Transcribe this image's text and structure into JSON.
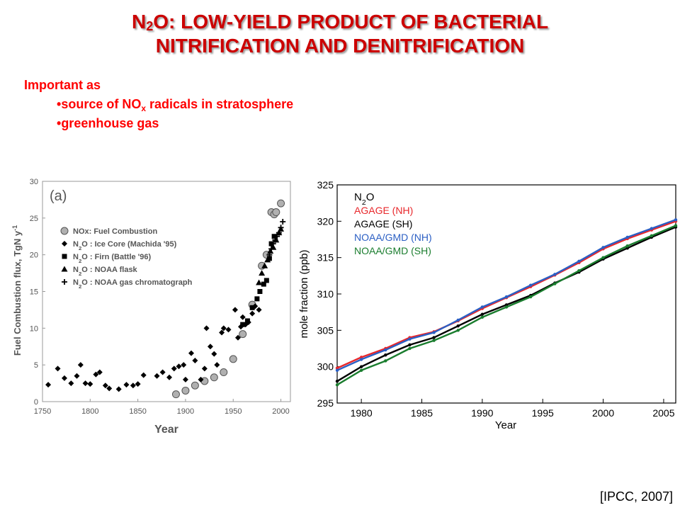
{
  "title": {
    "line1_prefix": "N",
    "line1_sub": "2",
    "line1_rest": "O: LOW-YIELD PRODUCT OF BACTERIAL",
    "line2": "NITRIFICATION AND DENITRIFICATION"
  },
  "intro": {
    "heading": "Important as",
    "bullet1_prefix": "source of NO",
    "bullet1_sub": "x",
    "bullet1_rest": " radicals in stratosphere",
    "bullet2": "greenhouse gas"
  },
  "credit": "[IPCC, 2007]",
  "chart_data": [
    {
      "type": "scatter",
      "panel_label": "(a)",
      "xlabel": "Year",
      "ylabel": "Fuel Combustion flux, TgN y-1",
      "xlim": [
        1750,
        2010
      ],
      "ylim": [
        0,
        30
      ],
      "xticks": [
        1750,
        1800,
        1850,
        1900,
        1950,
        2000
      ],
      "yticks": [
        0,
        5,
        10,
        15,
        20,
        25,
        30
      ],
      "legend_position": "upper-left",
      "series": [
        {
          "name": "NOx: Fuel Combustion",
          "marker": "circle",
          "color": "#b0b0b0",
          "x": [
            1890,
            1900,
            1910,
            1920,
            1930,
            1940,
            1950,
            1960,
            1970,
            1980,
            1985,
            1990,
            1993,
            1995,
            2000
          ],
          "y": [
            1.0,
            1.5,
            2.2,
            2.8,
            3.3,
            4.0,
            5.8,
            9.2,
            13.2,
            18.5,
            20.0,
            25.8,
            25.5,
            25.8,
            27.0
          ]
        },
        {
          "name": "N2O : Ice Core (Machida '95)",
          "marker": "diamond",
          "color": "#000000",
          "x": [
            1756,
            1766,
            1773,
            1780,
            1786,
            1790,
            1795,
            1800,
            1806,
            1810,
            1816,
            1820,
            1830,
            1838,
            1845,
            1850,
            1856,
            1870,
            1876,
            1883,
            1888,
            1893,
            1898,
            1900,
            1906,
            1910,
            1916,
            1920,
            1922,
            1926,
            1930,
            1933,
            1938,
            1940,
            1945,
            1952,
            1955,
            1958,
            1960,
            1963,
            1966,
            1970,
            1973,
            1977
          ],
          "y": [
            2.3,
            4.5,
            3.2,
            2.5,
            3.5,
            5.0,
            2.5,
            2.4,
            3.7,
            4.0,
            2.2,
            1.8,
            1.7,
            2.3,
            2.2,
            2.4,
            3.6,
            3.5,
            4.0,
            3.3,
            4.5,
            4.8,
            5.0,
            3.0,
            6.6,
            5.6,
            3.0,
            4.5,
            10.0,
            7.5,
            6.5,
            5.0,
            9.4,
            10.0,
            9.8,
            12.5,
            8.7,
            10.2,
            11.5,
            10.5,
            10.8,
            12.0,
            13.0,
            12.5
          ]
        },
        {
          "name": "N2O : Firn (Battle '96)",
          "marker": "square",
          "color": "#000000",
          "x": [
            1960,
            1965,
            1970,
            1975,
            1978,
            1982,
            1985,
            1988,
            1990,
            1993
          ],
          "y": [
            10.5,
            11.0,
            12.8,
            14.0,
            15.0,
            16.0,
            16.5,
            19.5,
            21.5,
            22.5
          ]
        },
        {
          "name": "N2O : NOAA flask",
          "marker": "triangle",
          "color": "#000000",
          "x": [
            1977,
            1980,
            1983,
            1986,
            1989,
            1992,
            1995,
            1998,
            2000
          ],
          "y": [
            16.2,
            17.5,
            18.5,
            19.3,
            20.5,
            21.0,
            22.0,
            23.0,
            23.5
          ]
        },
        {
          "name": "N2O : NOAA gas chromatograph",
          "marker": "plus",
          "color": "#000000",
          "x": [
            1988,
            1990,
            1992,
            1994,
            1996,
            1998,
            2000,
            2002
          ],
          "y": [
            20.0,
            20.8,
            21.5,
            22.0,
            22.5,
            23.0,
            23.7,
            24.5
          ]
        }
      ]
    },
    {
      "type": "line",
      "xlabel": "Year",
      "ylabel": "mole fraction (ppb)",
      "xlim": [
        1978,
        2006
      ],
      "ylim": [
        295,
        325
      ],
      "xticks": [
        1980,
        1985,
        1990,
        1995,
        2000,
        2005
      ],
      "yticks": [
        295,
        300,
        305,
        310,
        315,
        320,
        325
      ],
      "legend_title": "N2O",
      "legend_position": "upper-left",
      "series": [
        {
          "name": "AGAGE (NH)",
          "color": "#e8272b",
          "x": [
            1978,
            1980,
            1982,
            1984,
            1986,
            1988,
            1990,
            1992,
            1994,
            1996,
            1998,
            2000,
            2002,
            2004,
            2006
          ],
          "y": [
            299.8,
            301.3,
            302.5,
            304.0,
            304.8,
            306.3,
            308.0,
            309.5,
            311.0,
            312.6,
            314.3,
            316.2,
            317.6,
            318.8,
            320.0
          ]
        },
        {
          "name": "AGAGE (SH)",
          "color": "#000000",
          "x": [
            1978,
            1980,
            1982,
            1984,
            1986,
            1988,
            1990,
            1992,
            1994,
            1996,
            1998,
            2000,
            2002,
            2004,
            2006
          ],
          "y": [
            298.0,
            300.0,
            301.6,
            303.0,
            304.0,
            305.6,
            307.2,
            308.5,
            309.8,
            311.5,
            313.0,
            314.8,
            316.3,
            317.8,
            319.2
          ]
        },
        {
          "name": "NOAA/GMD (NH)",
          "color": "#2b5fc4",
          "x": [
            1978,
            1980,
            1982,
            1984,
            1986,
            1988,
            1990,
            1992,
            1994,
            1996,
            1998,
            2000,
            2002,
            2004,
            2006
          ],
          "y": [
            299.5,
            301.0,
            302.3,
            303.8,
            304.7,
            306.4,
            308.2,
            309.6,
            311.2,
            312.7,
            314.5,
            316.4,
            317.8,
            319.0,
            320.2
          ]
        },
        {
          "name": "NOAA/GMD (SH)",
          "color": "#1a7d2e",
          "x": [
            1978,
            1980,
            1982,
            1984,
            1986,
            1988,
            1990,
            1992,
            1994,
            1996,
            1998,
            2000,
            2002,
            2004,
            2006
          ],
          "y": [
            297.5,
            299.5,
            300.8,
            302.5,
            303.6,
            305.0,
            306.8,
            308.2,
            309.6,
            311.4,
            313.2,
            315.0,
            316.6,
            318.0,
            319.4
          ]
        }
      ]
    }
  ]
}
